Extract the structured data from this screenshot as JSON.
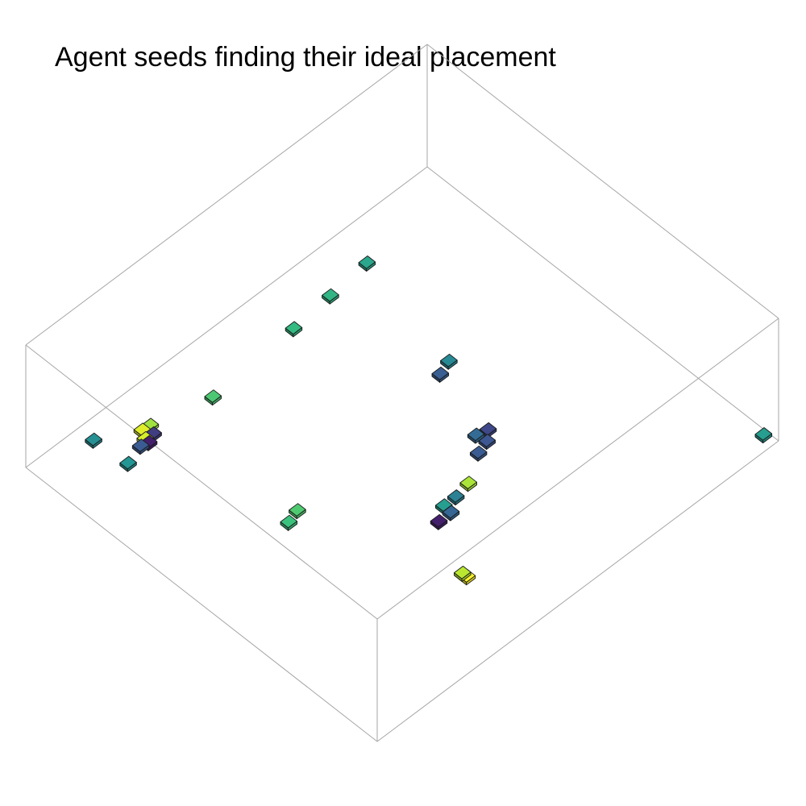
{
  "chart_data": {
    "type": "scatter",
    "title": "Agent seeds finding their ideal placement",
    "grid": false,
    "colormap": "viridis",
    "palette": [
      "#440154",
      "#3b528b",
      "#31688e",
      "#21918c",
      "#35b779",
      "#6ece58",
      "#b5de2b",
      "#fde725"
    ],
    "points": [
      {
        "x": 0.83,
        "y": 0.02,
        "z": 0.55,
        "c": 0.4
      },
      {
        "x": 0.8,
        "y": 0.08,
        "z": 0.28,
        "c": 0.42
      },
      {
        "x": 0.81,
        "y": 0.12,
        "z": 0.3,
        "c": 0.18
      },
      {
        "x": 0.82,
        "y": 0.14,
        "z": 0.29,
        "c": 0.9
      },
      {
        "x": 0.81,
        "y": 0.14,
        "z": 0.28,
        "c": 0.05
      },
      {
        "x": 0.82,
        "y": 0.16,
        "z": 0.28,
        "c": 0.1
      },
      {
        "x": 0.84,
        "y": 0.15,
        "z": 0.29,
        "c": 0.92
      },
      {
        "x": 0.84,
        "y": 0.17,
        "z": 0.28,
        "c": 0.8
      },
      {
        "x": 0.81,
        "y": 0.3,
        "z": 0.26,
        "c": 0.62
      },
      {
        "x": 0.82,
        "y": 0.51,
        "z": 0.28,
        "c": 0.55
      },
      {
        "x": 0.83,
        "y": 0.61,
        "z": 0.28,
        "c": 0.53
      },
      {
        "x": 0.84,
        "y": 0.71,
        "z": 0.28,
        "c": 0.48
      },
      {
        "x": 0.48,
        "y": 0.2,
        "z": 0.22,
        "c": 0.58
      },
      {
        "x": 0.49,
        "y": 0.23,
        "z": 0.22,
        "c": 0.63
      },
      {
        "x": 0.54,
        "y": 0.63,
        "z": 0.24,
        "c": 0.2
      },
      {
        "x": 0.55,
        "y": 0.66,
        "z": 0.25,
        "c": 0.38
      },
      {
        "x": 0.34,
        "y": 0.55,
        "z": 0.24,
        "c": 0.18
      },
      {
        "x": 0.35,
        "y": 0.58,
        "z": 0.24,
        "c": 0.15
      },
      {
        "x": 0.37,
        "y": 0.57,
        "z": 0.27,
        "c": 0.28
      },
      {
        "x": 0.37,
        "y": 0.6,
        "z": 0.24,
        "c": 0.12
      },
      {
        "x": 0.29,
        "y": 0.42,
        "z": 0.24,
        "c": 0.45
      },
      {
        "x": 0.29,
        "y": 0.45,
        "z": 0.24,
        "c": 0.35
      },
      {
        "x": 0.27,
        "y": 0.39,
        "z": 0.23,
        "c": 0.05
      },
      {
        "x": 0.27,
        "y": 0.42,
        "z": 0.23,
        "c": 0.25
      },
      {
        "x": 0.3,
        "y": 0.49,
        "z": 0.23,
        "c": 0.82
      },
      {
        "x": 0.02,
        "y": 0.23,
        "z": 0.76,
        "c": 0.85
      },
      {
        "x": 0.03,
        "y": 0.25,
        "z": 0.66,
        "c": 0.97
      },
      {
        "x": 0.02,
        "y": 0.98,
        "z": 0.05,
        "c": 0.45
      }
    ]
  }
}
